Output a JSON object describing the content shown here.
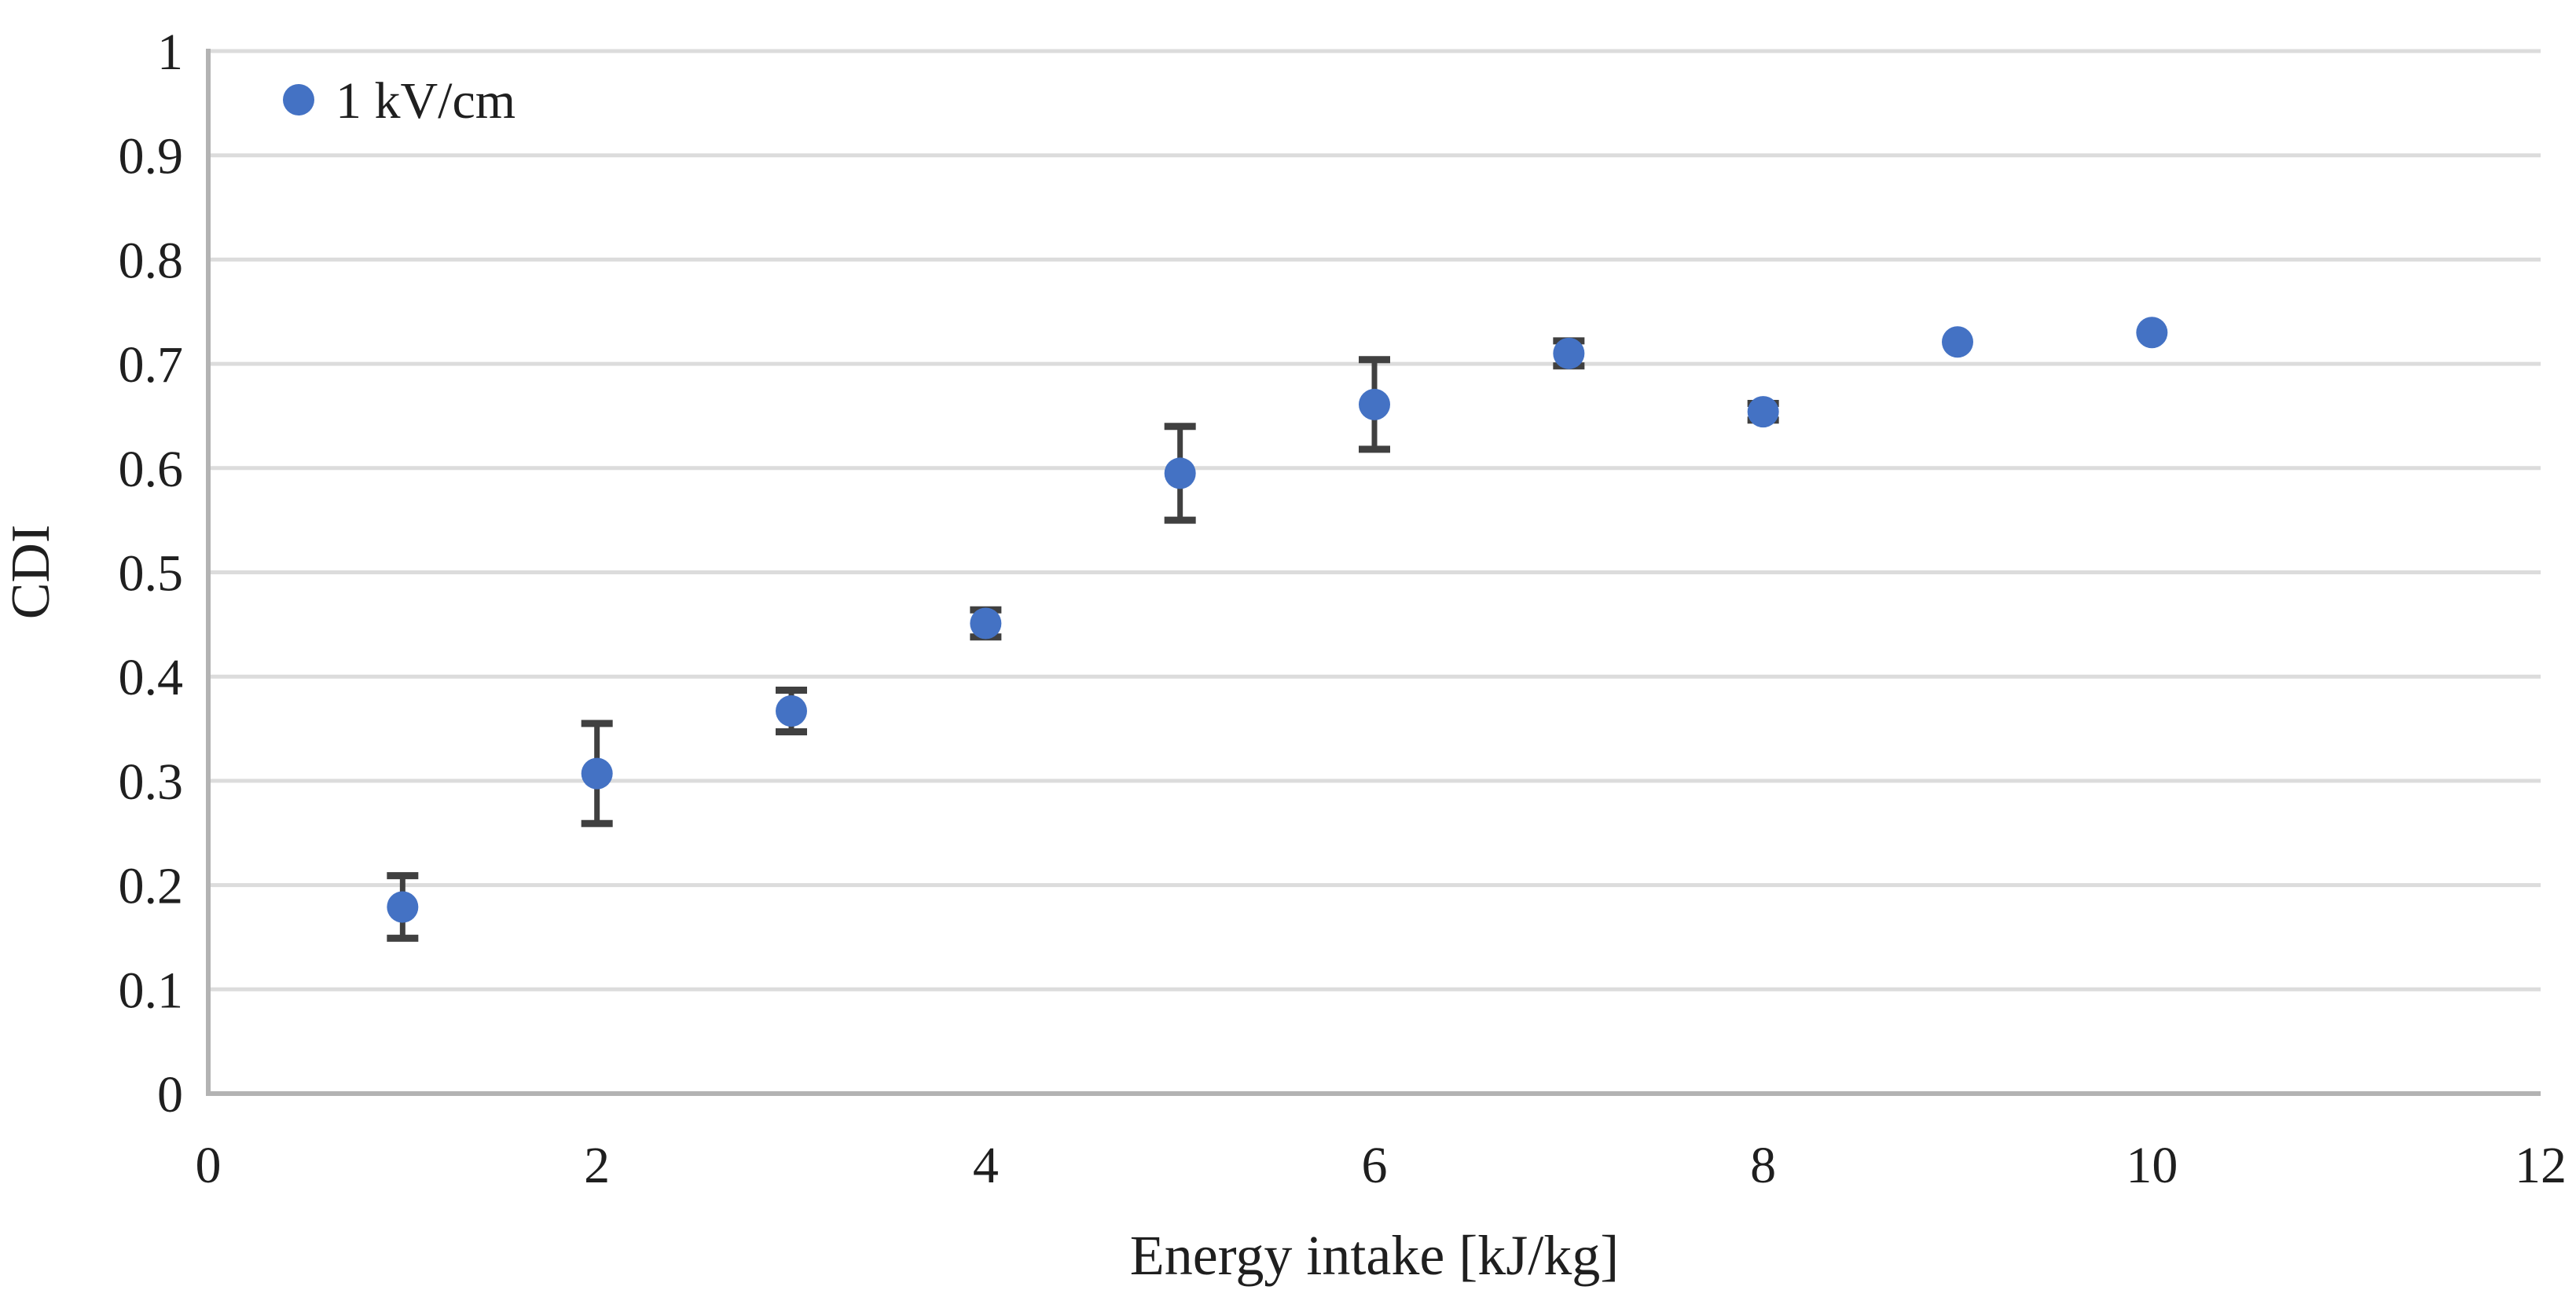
{
  "figure": {
    "background": "#ffffff"
  },
  "chart_data": {
    "type": "scatter",
    "title": "",
    "xlabel": "Energy intake [kJ/kg]",
    "ylabel": "CDI",
    "xlim": [
      0,
      12
    ],
    "ylim": [
      0,
      1
    ],
    "x_ticks": [
      0,
      2,
      4,
      6,
      8,
      10,
      12
    ],
    "x_tick_labels": [
      "0",
      "2",
      "4",
      "6",
      "8",
      "10",
      "12"
    ],
    "y_ticks": [
      0,
      0.1,
      0.2,
      0.3,
      0.4,
      0.5,
      0.6,
      0.7,
      0.8,
      0.9,
      1
    ],
    "y_tick_labels": [
      "0",
      "0.1",
      "0.2",
      "0.3",
      "0.4",
      "0.5",
      "0.6",
      "0.7",
      "0.8",
      "0.9",
      "1"
    ],
    "grid": "horizontal",
    "legend": {
      "position": "top-left",
      "entries": [
        {
          "label": "1 kV/cm",
          "marker": "circle",
          "color": "#4472C4"
        }
      ]
    },
    "series": [
      {
        "name": "1 kV/cm",
        "marker": "circle",
        "marker_color": "#4472C4",
        "error_bar_color": "#404040",
        "x": [
          1,
          2,
          3,
          4,
          5,
          6,
          7,
          8,
          9,
          10
        ],
        "y": [
          0.179,
          0.307,
          0.367,
          0.451,
          0.595,
          0.661,
          0.71,
          0.654,
          0.721,
          0.73
        ],
        "y_error": [
          0.03,
          0.048,
          0.02,
          0.013,
          0.045,
          0.043,
          0.012,
          0.008,
          0,
          0
        ]
      }
    ],
    "colors": {
      "gridline": "#DCDCDC",
      "axis_line": "#B3B3B3",
      "tick_label": "#1F1F1F"
    }
  }
}
